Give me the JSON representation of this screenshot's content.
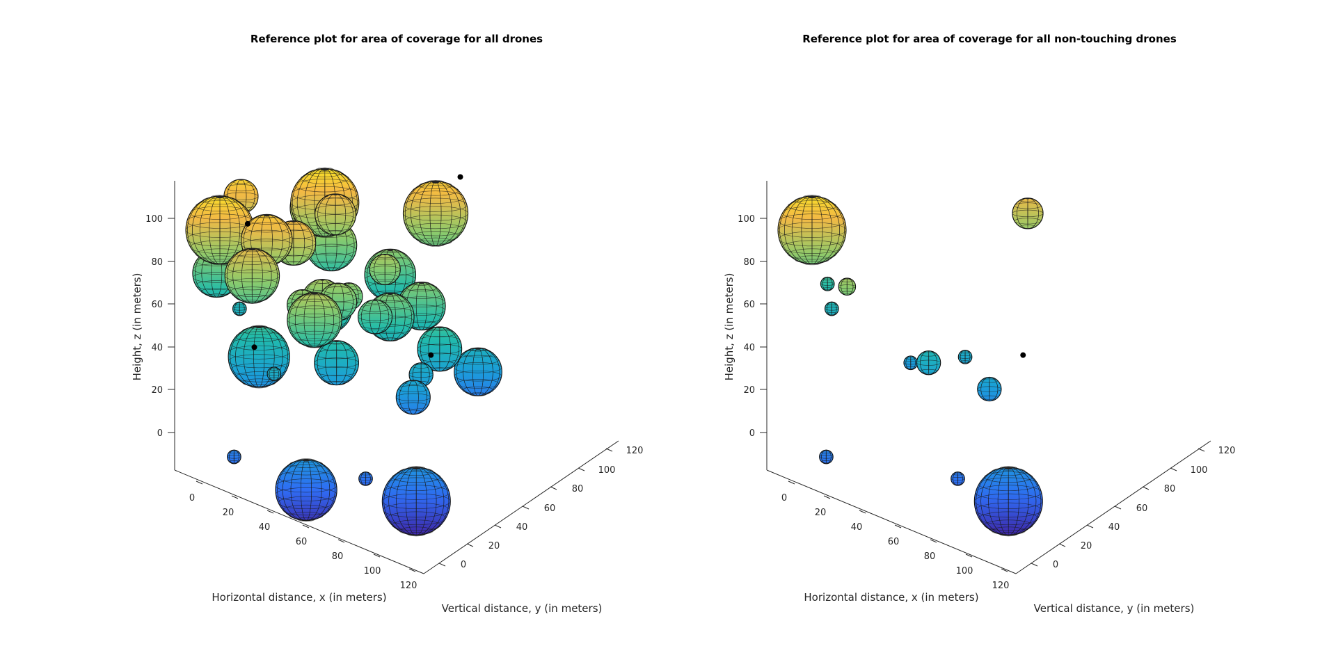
{
  "chart_data": [
    {
      "type": "scatter3d",
      "title": "Reference plot for area of coverage for all drones",
      "xlabel": "Horizontal distance, x (in meters)",
      "ylabel": "Vertical distance, y (in meters)",
      "zlabel": "Height, z (in meters)",
      "xticks": [
        "0",
        "20",
        "40",
        "60",
        "80",
        "100",
        "120"
      ],
      "yticks": [
        "0",
        "20",
        "40",
        "60",
        "80",
        "100",
        "120"
      ],
      "zticks": [
        "0",
        "20",
        "40",
        "60",
        "80",
        "100"
      ],
      "xlim": [
        -10,
        120
      ],
      "ylim": [
        -10,
        120
      ],
      "zlim": [
        -18,
        118
      ],
      "colormap": [
        "#3e26a8",
        "#2f6cf4",
        "#1a9fd8",
        "#21bcaa",
        "#8ccb6b",
        "#f5b844",
        "#f9fb15"
      ],
      "spheres": [
        {
          "x": 113,
          "y": 17,
          "z": 2,
          "r": 20
        },
        {
          "x": 92,
          "y": 10,
          "z": 8,
          "r": 4
        },
        {
          "x": 75,
          "y": -8,
          "z": 5,
          "r": 18
        },
        {
          "x": 42,
          "y": -14,
          "z": 11,
          "r": 4
        },
        {
          "x": 5,
          "y": 37,
          "z": 42,
          "r": 4
        },
        {
          "x": 30,
          "y": 18,
          "z": 38,
          "r": 18
        },
        {
          "x": 7,
          "y": 38,
          "z": 58,
          "r": 13
        },
        {
          "x": 58,
          "y": 34,
          "z": 38,
          "r": 13
        },
        {
          "x": 41,
          "y": 14,
          "z": 36,
          "r": 4
        },
        {
          "x": 52,
          "y": 40,
          "z": 59,
          "r": 9
        },
        {
          "x": 0,
          "y": 28,
          "z": 61,
          "r": 14
        },
        {
          "x": 59,
          "y": 18,
          "z": 66,
          "r": 16
        },
        {
          "x": 96,
          "y": 80,
          "z": 26,
          "r": 14
        },
        {
          "x": 54,
          "y": 75,
          "z": 58,
          "r": 15
        },
        {
          "x": 90,
          "y": 62,
          "z": 43,
          "r": 13
        },
        {
          "x": 85,
          "y": 56,
          "z": 32,
          "r": 7
        },
        {
          "x": 84,
          "y": 52,
          "z": 23,
          "r": 10
        },
        {
          "x": 23,
          "y": 66,
          "z": 82,
          "r": 16
        },
        {
          "x": 34,
          "y": 64,
          "z": 84,
          "r": 12
        },
        {
          "x": 59,
          "y": 41,
          "z": 66,
          "r": 8
        },
        {
          "x": 63,
          "y": 60,
          "z": 71,
          "r": 9
        },
        {
          "x": 72,
          "y": 52,
          "z": 56,
          "r": 14
        },
        {
          "x": 48,
          "y": 41,
          "z": 56,
          "r": 14
        },
        {
          "x": 49,
          "y": 31,
          "z": 63,
          "r": 8
        },
        {
          "x": 48,
          "y": 24,
          "z": 66,
          "r": 9
        },
        {
          "x": 58,
          "y": 35,
          "z": 66,
          "r": 11
        },
        {
          "x": 79,
          "y": 64,
          "z": 58,
          "r": 14
        },
        {
          "x": 53,
          "y": 31,
          "z": 67,
          "r": 12
        },
        {
          "x": 68,
          "y": 47,
          "z": 57,
          "r": 10
        },
        {
          "x": 31,
          "y": 65,
          "z": 68,
          "r": 15
        },
        {
          "x": 5,
          "y": 38,
          "z": 94,
          "r": 10
        },
        {
          "x": 30,
          "y": 62,
          "z": 89,
          "r": 20
        },
        {
          "x": 8,
          "y": 20,
          "z": 88,
          "r": 20
        },
        {
          "x": 28,
          "y": 16,
          "z": 76,
          "r": 16
        },
        {
          "x": 34,
          "y": 36,
          "z": 84,
          "r": 13
        },
        {
          "x": 66,
          "y": 90,
          "z": 84,
          "r": 19
        },
        {
          "x": 27,
          "y": 27,
          "z": 87,
          "r": 15
        }
      ],
      "points": [
        {
          "x": 75,
          "y": 95,
          "z": 102
        },
        {
          "x": 87,
          "y": 60,
          "z": 40
        },
        {
          "x": 26,
          "y": 20,
          "z": 40
        },
        {
          "x": 10,
          "y": 36,
          "z": 84
        }
      ]
    },
    {
      "type": "scatter3d",
      "title": "Reference plot for area of coverage for all non-touching drones",
      "xlabel": "Horizontal distance, x (in meters)",
      "ylabel": "Vertical distance, y (in meters)",
      "zlabel": "Height, z (in meters)",
      "xticks": [
        "0",
        "20",
        "40",
        "60",
        "80",
        "100",
        "120"
      ],
      "yticks": [
        "0",
        "20",
        "40",
        "60",
        "80",
        "100",
        "120"
      ],
      "zticks": [
        "0",
        "20",
        "40",
        "60",
        "80",
        "100"
      ],
      "xlim": [
        -10,
        120
      ],
      "ylim": [
        -10,
        120
      ],
      "zlim": [
        -18,
        118
      ],
      "colormap": [
        "#3e26a8",
        "#2f6cf4",
        "#1a9fd8",
        "#21bcaa",
        "#8ccb6b",
        "#f5b844",
        "#f9fb15"
      ],
      "spheres": [
        {
          "x": 113,
          "y": 17,
          "z": 2,
          "r": 20
        },
        {
          "x": 92,
          "y": 10,
          "z": 8,
          "r": 4
        },
        {
          "x": 5,
          "y": 37,
          "z": 42,
          "r": 4
        },
        {
          "x": 42,
          "y": -14,
          "z": 11,
          "r": 4
        },
        {
          "x": 40,
          "y": 45,
          "z": 26,
          "r": 4
        },
        {
          "x": 58,
          "y": 34,
          "z": 38,
          "r": 7
        },
        {
          "x": 78,
          "y": 49,
          "z": 26,
          "r": 7
        },
        {
          "x": 63,
          "y": 52,
          "z": 34,
          "r": 4
        },
        {
          "x": 2,
          "y": 38,
          "z": 52,
          "r": 4
        },
        {
          "x": 8,
          "y": 20,
          "z": 88,
          "r": 20
        },
        {
          "x": 31,
          "y": 14,
          "z": 73,
          "r": 5
        },
        {
          "x": 66,
          "y": 90,
          "z": 84,
          "r": 9
        }
      ],
      "points": [
        {
          "x": 87,
          "y": 60,
          "z": 40
        }
      ]
    }
  ]
}
